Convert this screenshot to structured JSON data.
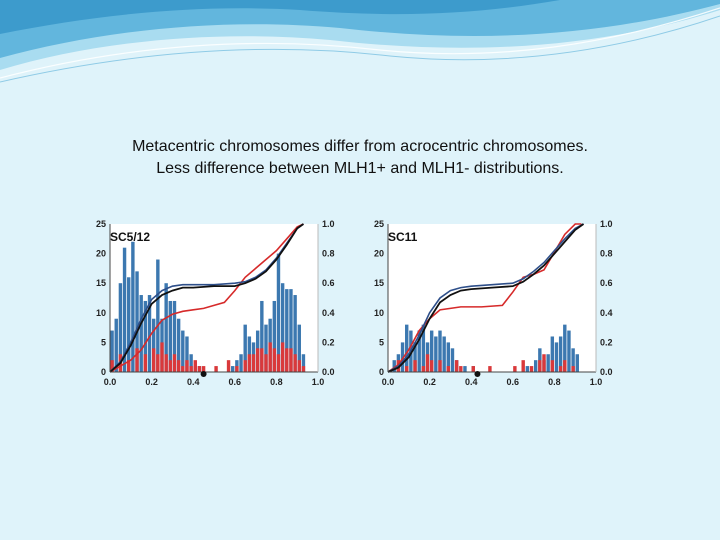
{
  "caption": {
    "line1": "Metacentric chromosomes differ from acrocentric chromosomes.",
    "line2": "Less difference between MLH1+ and MLH1- distributions."
  },
  "colors": {
    "background": "#dff3fa",
    "banner_dark": "#4aa9d6",
    "banner_light": "#a9dcf0",
    "blue_bar": "#3c78b0",
    "red_bar": "#d9393b",
    "black_line": "#111111",
    "blue_line": "#2e4f8a",
    "red_line": "#d62a2a"
  },
  "chart_data": [
    {
      "type": "bar",
      "title": "SC5/12",
      "xlabel": "",
      "ylabel": "",
      "y2label": "",
      "xlim": [
        0,
        1
      ],
      "ylim": [
        0,
        25
      ],
      "y2lim": [
        0,
        1
      ],
      "x_ticks": [
        "0.0",
        "0.2",
        "0.4",
        "0.6",
        "0.8",
        "1.0"
      ],
      "y_ticks": [
        "0",
        "5",
        "10",
        "15",
        "20",
        "25"
      ],
      "y2_ticks": [
        "0.0",
        "0.2",
        "0.4",
        "0.6",
        "0.8",
        "1.0"
      ],
      "centromere_x": 0.45,
      "series": [
        {
          "type": "bar",
          "x": [
            0.01,
            0.03,
            0.05,
            0.07,
            0.09,
            0.11,
            0.13,
            0.15,
            0.17,
            0.19,
            0.21,
            0.23,
            0.25,
            0.27,
            0.29,
            0.31,
            0.33,
            0.35,
            0.37,
            0.39,
            0.41,
            0.43,
            0.59,
            0.61,
            0.63,
            0.65,
            0.67,
            0.69,
            0.71,
            0.73,
            0.75,
            0.77,
            0.79,
            0.81,
            0.83,
            0.85,
            0.87,
            0.89,
            0.91,
            0.93
          ],
          "values": [
            7,
            9,
            15,
            21,
            16,
            22,
            17,
            13,
            12,
            13,
            9,
            19,
            9,
            15,
            12,
            12,
            9,
            7,
            6,
            3,
            1,
            1,
            1,
            2,
            3,
            8,
            6,
            5,
            7,
            12,
            8,
            9,
            12,
            20,
            15,
            14,
            14,
            13,
            8,
            3
          ]
        },
        {
          "type": "bar",
          "x": [
            0.01,
            0.05,
            0.09,
            0.13,
            0.17,
            0.21,
            0.23,
            0.25,
            0.27,
            0.29,
            0.31,
            0.33,
            0.35,
            0.37,
            0.39,
            0.41,
            0.43,
            0.45,
            0.51,
            0.57,
            0.61,
            0.65,
            0.67,
            0.69,
            0.71,
            0.73,
            0.75,
            0.77,
            0.79,
            0.81,
            0.83,
            0.85,
            0.87,
            0.89,
            0.91,
            0.93
          ],
          "values": [
            2,
            3,
            2,
            4,
            3,
            4,
            3,
            5,
            3,
            2,
            3,
            2,
            1,
            2,
            1,
            2,
            1,
            1,
            1,
            2,
            1,
            2,
            3,
            3,
            4,
            4,
            3,
            5,
            4,
            3,
            5,
            4,
            4,
            3,
            2,
            1
          ]
        },
        {
          "type": "line",
          "x": [
            0.0,
            0.05,
            0.1,
            0.15,
            0.2,
            0.25,
            0.3,
            0.35,
            0.4,
            0.5,
            0.6,
            0.65,
            0.7,
            0.75,
            0.8,
            0.85,
            0.9,
            0.93
          ],
          "values": [
            0.0,
            0.06,
            0.18,
            0.33,
            0.46,
            0.52,
            0.55,
            0.57,
            0.57,
            0.58,
            0.58,
            0.6,
            0.63,
            0.68,
            0.76,
            0.86,
            0.97,
            1.0
          ]
        },
        {
          "type": "line",
          "x": [
            0.0,
            0.05,
            0.1,
            0.15,
            0.2,
            0.25,
            0.3,
            0.35,
            0.4,
            0.5,
            0.6,
            0.65,
            0.7,
            0.75,
            0.8,
            0.85,
            0.9,
            0.93
          ],
          "values": [
            0.0,
            0.07,
            0.2,
            0.36,
            0.49,
            0.55,
            0.58,
            0.59,
            0.59,
            0.59,
            0.6,
            0.61,
            0.64,
            0.69,
            0.77,
            0.87,
            0.97,
            1.0
          ]
        },
        {
          "type": "line",
          "x": [
            0.0,
            0.05,
            0.1,
            0.15,
            0.2,
            0.25,
            0.3,
            0.35,
            0.4,
            0.45,
            0.5,
            0.55,
            0.6,
            0.65,
            0.7,
            0.75,
            0.8,
            0.85,
            0.9,
            0.93
          ],
          "values": [
            0.0,
            0.04,
            0.08,
            0.15,
            0.26,
            0.35,
            0.39,
            0.41,
            0.42,
            0.43,
            0.45,
            0.47,
            0.55,
            0.64,
            0.7,
            0.76,
            0.82,
            0.9,
            0.98,
            1.0
          ]
        }
      ]
    },
    {
      "type": "bar",
      "title": "SC11",
      "xlabel": "",
      "ylabel": "",
      "y2label": "",
      "xlim": [
        0,
        1
      ],
      "ylim": [
        0,
        25
      ],
      "y2lim": [
        0,
        1
      ],
      "x_ticks": [
        "0.0",
        "0.2",
        "0.4",
        "0.6",
        "0.8",
        "1.0"
      ],
      "y_ticks": [
        "0",
        "5",
        "10",
        "15",
        "20",
        "25"
      ],
      "y2_ticks": [
        "0.0",
        "0.2",
        "0.4",
        "0.6",
        "0.8",
        "1.0"
      ],
      "centromere_x": 0.43,
      "series": [
        {
          "type": "bar",
          "x": [
            0.03,
            0.05,
            0.07,
            0.09,
            0.11,
            0.13,
            0.15,
            0.17,
            0.19,
            0.21,
            0.23,
            0.25,
            0.27,
            0.29,
            0.31,
            0.33,
            0.37,
            0.41,
            0.67,
            0.71,
            0.73,
            0.75,
            0.77,
            0.79,
            0.81,
            0.83,
            0.85,
            0.87,
            0.89,
            0.91
          ],
          "values": [
            2,
            3,
            5,
            8,
            7,
            5,
            7,
            8,
            5,
            7,
            6,
            7,
            6,
            5,
            4,
            2,
            1,
            1,
            1,
            2,
            4,
            2,
            3,
            6,
            5,
            6,
            8,
            7,
            4,
            3
          ]
        },
        {
          "type": "bar",
          "x": [
            0.05,
            0.09,
            0.13,
            0.17,
            0.19,
            0.21,
            0.25,
            0.29,
            0.33,
            0.35,
            0.41,
            0.49,
            0.61,
            0.65,
            0.69,
            0.73,
            0.75,
            0.79,
            0.83,
            0.85,
            0.89
          ],
          "values": [
            2,
            1,
            2,
            1,
            3,
            2,
            2,
            1,
            2,
            1,
            1,
            1,
            1,
            2,
            1,
            2,
            3,
            2,
            1,
            2,
            1
          ]
        },
        {
          "type": "line",
          "x": [
            0.0,
            0.05,
            0.1,
            0.15,
            0.2,
            0.25,
            0.3,
            0.35,
            0.4,
            0.5,
            0.6,
            0.65,
            0.7,
            0.75,
            0.8,
            0.85,
            0.9,
            0.94
          ],
          "values": [
            0.0,
            0.03,
            0.1,
            0.22,
            0.36,
            0.47,
            0.52,
            0.55,
            0.56,
            0.57,
            0.58,
            0.61,
            0.66,
            0.72,
            0.8,
            0.88,
            0.96,
            1.0
          ]
        },
        {
          "type": "line",
          "x": [
            0.0,
            0.05,
            0.1,
            0.15,
            0.2,
            0.25,
            0.3,
            0.35,
            0.4,
            0.5,
            0.6,
            0.65,
            0.7,
            0.75,
            0.8,
            0.85,
            0.9,
            0.94
          ],
          "values": [
            0.0,
            0.04,
            0.12,
            0.25,
            0.4,
            0.5,
            0.55,
            0.57,
            0.58,
            0.59,
            0.6,
            0.63,
            0.68,
            0.74,
            0.82,
            0.9,
            0.97,
            1.0
          ]
        },
        {
          "type": "line",
          "x": [
            0.0,
            0.05,
            0.1,
            0.15,
            0.2,
            0.25,
            0.35,
            0.45,
            0.55,
            0.6,
            0.65,
            0.7,
            0.75,
            0.8,
            0.85,
            0.9,
            0.93
          ],
          "values": [
            0.0,
            0.05,
            0.15,
            0.28,
            0.36,
            0.42,
            0.44,
            0.44,
            0.45,
            0.54,
            0.64,
            0.66,
            0.69,
            0.81,
            0.93,
            1.0,
            1.0
          ]
        }
      ]
    }
  ]
}
